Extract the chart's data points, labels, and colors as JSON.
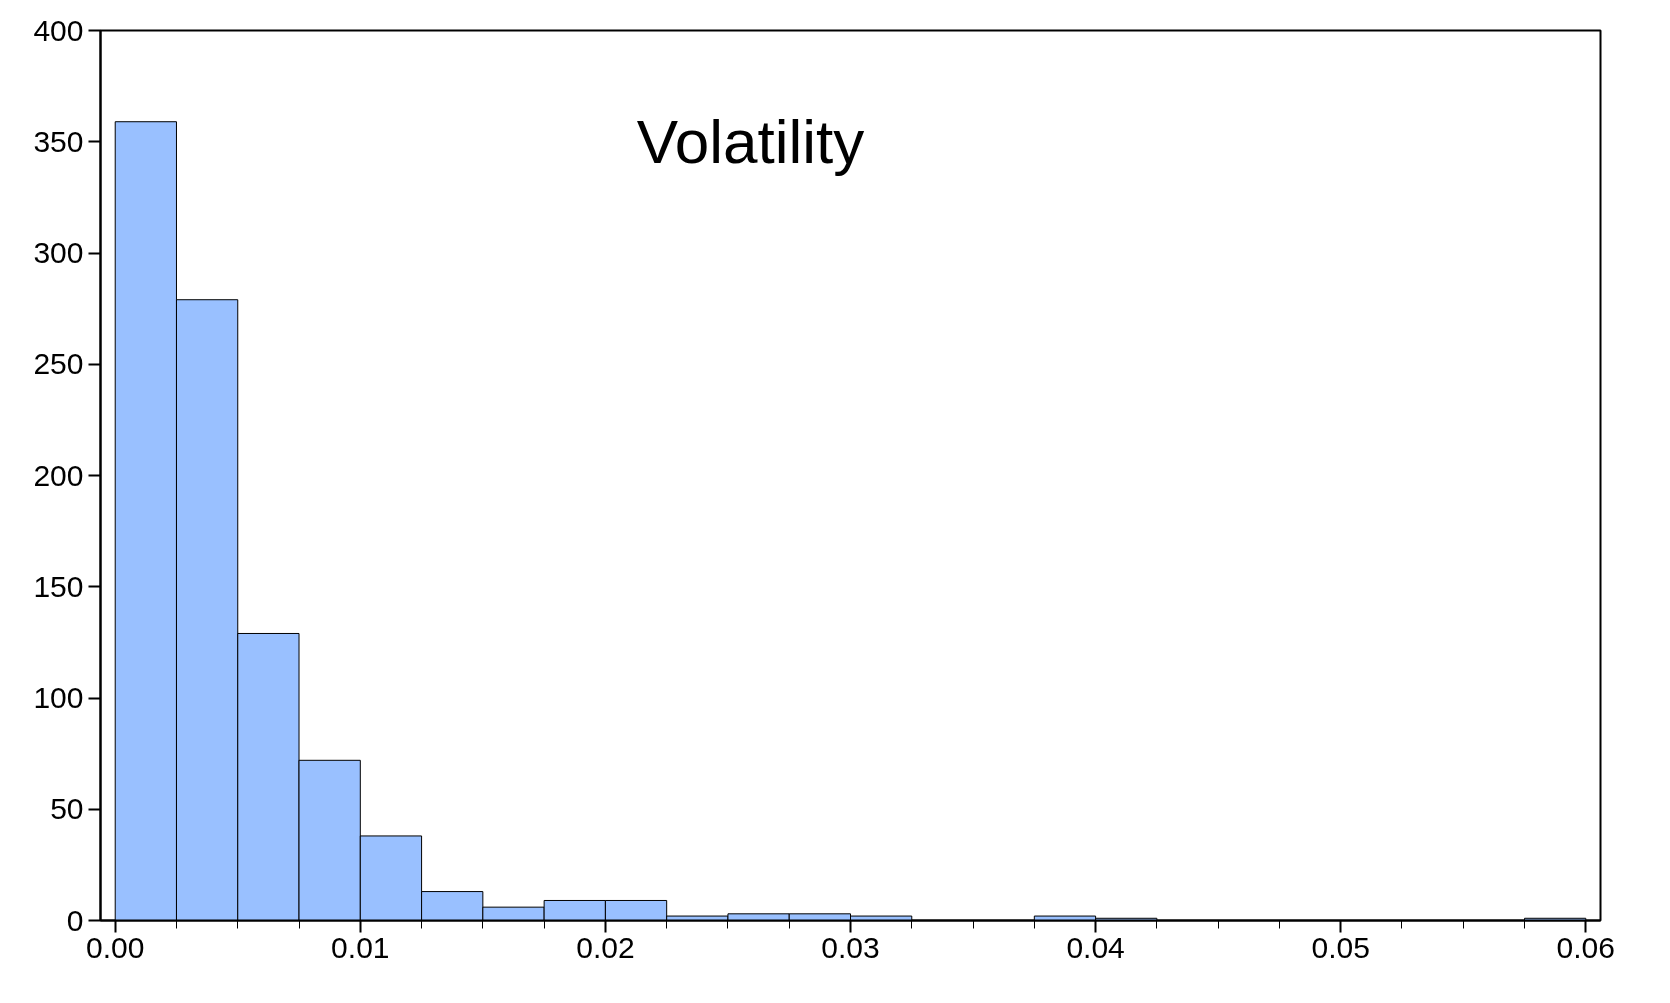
{
  "chart_data": {
    "type": "histogram",
    "title": "Volatility",
    "color": "#99c0ff",
    "bins": [
      0,
      0.0025,
      0.005,
      0.0075,
      0.01,
      0.0125,
      0.015,
      0.0175,
      0.02,
      0.0225,
      0.025,
      0.0275,
      0.03,
      0.0325,
      0.035,
      0.0375,
      0.04,
      0.0425,
      0.045,
      0.0475,
      0.05,
      0.0525,
      0.055,
      0.0575,
      0.06
    ],
    "values": [
      359,
      279,
      129,
      72,
      38,
      13,
      6,
      9,
      9,
      2,
      3,
      3,
      2,
      0,
      0,
      2,
      1,
      0,
      0,
      0,
      0,
      0,
      0,
      1
    ],
    "xlim": [
      -0.0006,
      0.0606
    ],
    "ylim": [
      0,
      400
    ],
    "xticks": [
      {
        "value": 0,
        "label": "0.00"
      },
      {
        "value": 0.01,
        "label": "0.01"
      },
      {
        "value": 0.02,
        "label": "0.02"
      },
      {
        "value": 0.03,
        "label": "0.03"
      },
      {
        "value": 0.04,
        "label": "0.04"
      },
      {
        "value": 0.05,
        "label": "0.05"
      },
      {
        "value": 0.06,
        "label": "0.06"
      }
    ],
    "yticks": [
      0,
      50,
      100,
      150,
      200,
      250,
      300,
      350,
      400
    ],
    "grid": false
  }
}
